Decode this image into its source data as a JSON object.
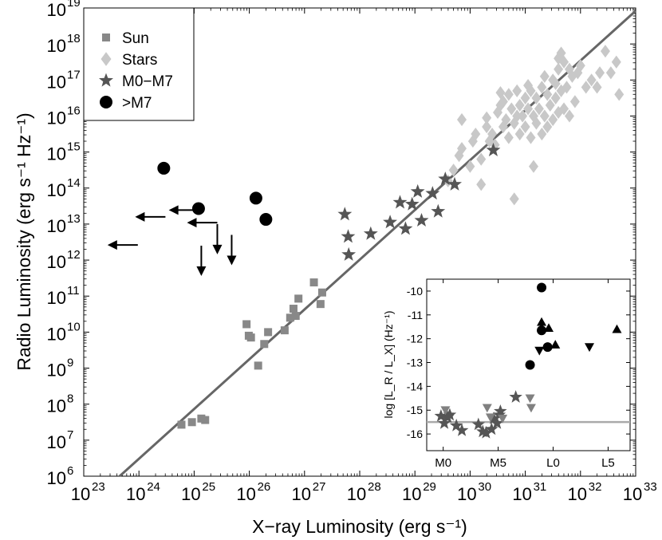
{
  "chart_data": {
    "type": "scatter",
    "title": "",
    "xlabel": "X−ray Luminosity (erg s⁻¹)",
    "ylabel": "Radio Luminosity (erg s⁻¹ Hz⁻¹)",
    "x_scale": "log",
    "y_scale": "log",
    "xlim_exponent": [
      23,
      33
    ],
    "ylim_exponent": [
      6,
      19
    ],
    "x_ticks_exponent": [
      23,
      24,
      25,
      26,
      27,
      28,
      29,
      30,
      31,
      32,
      33
    ],
    "y_ticks_exponent": [
      6,
      7,
      8,
      9,
      10,
      11,
      12,
      13,
      14,
      15,
      16,
      17,
      18,
      19
    ],
    "tick_base": "10",
    "legend_position": "top-left",
    "legend": [
      {
        "name": "Sun",
        "marker": "square",
        "color": "#888888"
      },
      {
        "name": "Stars",
        "marker": "diamond",
        "color": "#c8c8c8"
      },
      {
        "name": "M0−M7",
        "marker": "star",
        "color": "#555555"
      },
      {
        "name": ">M7",
        "marker": "circle",
        "color": "#000000"
      }
    ],
    "relation_line": {
      "name": "L_X / L_R relation",
      "color": "#666666",
      "points_log": [
        [
          23.65,
          6.0
        ],
        [
          33.0,
          18.92
        ]
      ]
    },
    "series": [
      {
        "name": "Sun",
        "marker": "square",
        "color": "#888888",
        "points_log": [
          [
            24.77,
            7.43
          ],
          [
            24.96,
            7.5
          ],
          [
            25.13,
            7.6
          ],
          [
            25.2,
            7.56
          ],
          [
            25.95,
            10.22
          ],
          [
            25.99,
            9.9
          ],
          [
            26.03,
            9.85
          ],
          [
            26.16,
            9.07
          ],
          [
            26.27,
            9.67
          ],
          [
            26.34,
            10.0
          ],
          [
            26.64,
            10.05
          ],
          [
            26.74,
            10.4
          ],
          [
            26.8,
            10.65
          ],
          [
            26.84,
            10.45
          ],
          [
            26.89,
            10.93
          ],
          [
            27.17,
            11.38
          ],
          [
            27.29,
            10.78
          ],
          [
            27.32,
            11.1
          ]
        ]
      },
      {
        "name": "Stars",
        "marker": "diamond",
        "color": "#c8c8c8",
        "points_log": [
          [
            29.6,
            14.2
          ],
          [
            29.7,
            14.5
          ],
          [
            29.8,
            14.9
          ],
          [
            29.85,
            15.1
          ],
          [
            29.85,
            15.9
          ],
          [
            30.0,
            14.6
          ],
          [
            30.05,
            15.3
          ],
          [
            30.1,
            15.5
          ],
          [
            30.2,
            14.8
          ],
          [
            30.2,
            14.1
          ],
          [
            30.3,
            15.7
          ],
          [
            30.35,
            15.3
          ],
          [
            30.4,
            15.5
          ],
          [
            30.45,
            15.2
          ],
          [
            30.5,
            16.1
          ],
          [
            30.55,
            16.3
          ],
          [
            30.6,
            15.7
          ],
          [
            30.6,
            16.4
          ],
          [
            30.65,
            15.9
          ],
          [
            30.7,
            15.4
          ],
          [
            30.7,
            16.6
          ],
          [
            30.75,
            16.2
          ],
          [
            30.8,
            13.7
          ],
          [
            30.8,
            15.8
          ],
          [
            30.85,
            16.0
          ],
          [
            30.85,
            16.7
          ],
          [
            30.9,
            15.5
          ],
          [
            30.9,
            16.3
          ],
          [
            30.95,
            16.0
          ],
          [
            31.0,
            15.7
          ],
          [
            31.0,
            16.5
          ],
          [
            31.05,
            16.2
          ],
          [
            31.1,
            15.4
          ],
          [
            31.1,
            16.7
          ],
          [
            31.15,
            16.0
          ],
          [
            31.15,
            14.6
          ],
          [
            31.2,
            16.5
          ],
          [
            31.2,
            15.8
          ],
          [
            31.25,
            16.2
          ],
          [
            31.3,
            15.5
          ],
          [
            31.3,
            16.8
          ],
          [
            31.35,
            16.0
          ],
          [
            31.4,
            16.6
          ],
          [
            31.4,
            15.7
          ],
          [
            31.45,
            16.3
          ],
          [
            31.5,
            15.9
          ],
          [
            31.5,
            17.0
          ],
          [
            31.55,
            16.5
          ],
          [
            31.6,
            16.1
          ],
          [
            31.6,
            17.3
          ],
          [
            31.65,
            16.7
          ],
          [
            31.7,
            16.2
          ],
          [
            31.7,
            17.5
          ],
          [
            31.75,
            16.8
          ],
          [
            31.8,
            16.0
          ],
          [
            31.85,
            17.1
          ],
          [
            31.9,
            16.4
          ],
          [
            32.1,
            16.8
          ],
          [
            32.2,
            17.0
          ],
          [
            32.3,
            16.8
          ],
          [
            32.35,
            17.2
          ],
          [
            32.45,
            17.8
          ],
          [
            32.55,
            17.2
          ],
          [
            32.65,
            17.5
          ],
          [
            32.7,
            16.6
          ],
          [
            31.6,
            17.6
          ],
          [
            31.65,
            17.75
          ],
          [
            31.95,
            17.2
          ],
          [
            32.0,
            17.4
          ],
          [
            31.8,
            17.3
          ],
          [
            31.55,
            16.9
          ],
          [
            31.35,
            17.1
          ],
          [
            31.05,
            16.85
          ],
          [
            30.3,
            15.95
          ],
          [
            30.55,
            16.65
          ]
        ]
      },
      {
        "name": "M0−M7",
        "marker": "star",
        "color": "#555555",
        "points_log": [
          [
            27.73,
            13.27
          ],
          [
            27.79,
            12.65
          ],
          [
            27.8,
            12.15
          ],
          [
            28.2,
            12.73
          ],
          [
            28.55,
            13.05
          ],
          [
            28.73,
            13.6
          ],
          [
            28.83,
            12.87
          ],
          [
            28.95,
            13.55
          ],
          [
            29.05,
            13.9
          ],
          [
            29.12,
            13.1
          ],
          [
            29.32,
            13.85
          ],
          [
            29.42,
            13.35
          ],
          [
            29.55,
            14.25
          ],
          [
            29.72,
            14.1
          ],
          [
            30.42,
            15.05
          ]
        ]
      },
      {
        "name": ">M7",
        "marker": "circle",
        "color": "#000000",
        "points_log": [
          [
            24.45,
            14.55
          ],
          [
            25.08,
            13.43
          ],
          [
            26.12,
            13.72
          ],
          [
            26.3,
            13.13
          ]
        ]
      }
    ],
    "upper_limits": [
      {
        "kind": "x",
        "point_log": [
          23.98,
          12.42
        ]
      },
      {
        "kind": "x",
        "point_log": [
          24.48,
          13.2
        ]
      },
      {
        "kind": "x",
        "point_log": [
          25.09,
          13.39
        ]
      },
      {
        "kind": "x",
        "point_log": [
          25.42,
          13.04
        ]
      },
      {
        "kind": "y",
        "point_log": [
          25.42,
          13.0
        ]
      },
      {
        "kind": "y",
        "point_log": [
          25.68,
          12.7
        ]
      },
      {
        "kind": "y",
        "point_log": [
          25.13,
          12.4
        ]
      }
    ],
    "inset": {
      "type": "scatter",
      "ylabel": "log [L_R / L_X] (Hz⁻¹)",
      "x_tick_labels": [
        "M0",
        "M5",
        "L0",
        "L5"
      ],
      "x_ticks_value": [
        0,
        5,
        10,
        15
      ],
      "xlim": [
        -1.5,
        17
      ],
      "y_tick_labels": [
        "-10",
        "-11",
        "-12",
        "-13",
        "-14",
        "-15",
        "-16"
      ],
      "y_ticks_value": [
        -10,
        -11,
        -12,
        -13,
        -14,
        -15,
        -16
      ],
      "ylim": [
        -16.7,
        -9.5
      ],
      "reference_line": -15.5,
      "series": [
        {
          "name": "M0−M7",
          "marker": "star",
          "color": "#555555",
          "points": [
            [
              -0.2,
              -15.25
            ],
            [
              0.1,
              -15.55
            ],
            [
              0.4,
              -15.3
            ],
            [
              0.6,
              -15.2
            ],
            [
              1.2,
              -15.65
            ],
            [
              1.7,
              -15.85
            ],
            [
              3.2,
              -15.6
            ],
            [
              3.6,
              -15.9
            ],
            [
              3.9,
              -15.95
            ],
            [
              4.4,
              -15.8
            ],
            [
              4.6,
              -15.35
            ],
            [
              4.9,
              -15.55
            ],
            [
              5.1,
              -15.2
            ],
            [
              5.2,
              -15.05
            ],
            [
              6.6,
              -14.45
            ]
          ]
        },
        {
          "name": "limits",
          "marker": "triangle-down",
          "color": "#808080",
          "points": [
            [
              0.2,
              -15.0
            ],
            [
              4.0,
              -14.9
            ],
            [
              5.4,
              -15.35
            ],
            [
              4.3,
              -15.3
            ],
            [
              7.9,
              -14.5
            ],
            [
              8.0,
              -14.9
            ]
          ]
        },
        {
          "name": ">M7",
          "marker": "circle",
          "color": "#000000",
          "points": [
            [
              7.9,
              -13.1
            ],
            [
              8.95,
              -9.85
            ],
            [
              8.95,
              -11.65
            ],
            [
              9.5,
              -12.35
            ]
          ]
        },
        {
          "name": ">M7 limits down",
          "marker": "triangle-down",
          "color": "#000000",
          "points": [
            [
              8.75,
              -12.5
            ],
            [
              13.3,
              -12.35
            ]
          ]
        },
        {
          "name": ">M7 limits up",
          "marker": "triangle-up",
          "color": "#000000",
          "points": [
            [
              8.95,
              -11.3
            ],
            [
              9.6,
              -11.55
            ],
            [
              10.2,
              -12.25
            ],
            [
              15.8,
              -11.6
            ]
          ]
        }
      ]
    }
  }
}
